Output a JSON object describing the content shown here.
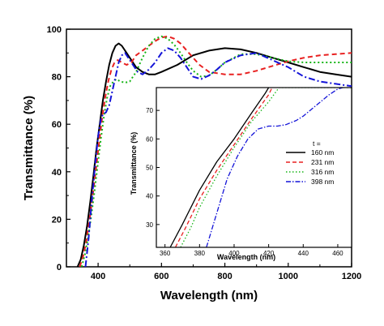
{
  "chart_data": [
    {
      "type": "line",
      "xlabel": "Wavelength (nm)",
      "ylabel": "Transmittance (%)",
      "xlim": [
        300,
        1200
      ],
      "ylim": [
        0,
        100
      ],
      "xticks": [
        400,
        600,
        800,
        1000,
        1200
      ],
      "yticks": [
        0,
        20,
        40,
        60,
        80,
        100
      ],
      "series": [
        {
          "name": "160 nm",
          "color": "#000000",
          "dash": "solid",
          "x": [
            335,
            345,
            355,
            365,
            375,
            385,
            395,
            405,
            415,
            425,
            435,
            445,
            455,
            465,
            475,
            485,
            500,
            520,
            540,
            560,
            580,
            600,
            650,
            700,
            750,
            800,
            850,
            900,
            950,
            1000,
            1050,
            1100,
            1150,
            1200
          ],
          "y": [
            0,
            3,
            9,
            17,
            27,
            38,
            50,
            60,
            70,
            78,
            85,
            90,
            93,
            94,
            93,
            91,
            88,
            84,
            82,
            81,
            81,
            82,
            85,
            89,
            91,
            92,
            91.5,
            90,
            88,
            86,
            84,
            82,
            81,
            80
          ]
        },
        {
          "name": "231 nm",
          "color": "#e82020",
          "dash": "6,4",
          "x": [
            342,
            352,
            362,
            372,
            382,
            392,
            402,
            412,
            422,
            432,
            442,
            452,
            462,
            475,
            490,
            505,
            520,
            540,
            560,
            580,
            600,
            620,
            640,
            660,
            680,
            700,
            720,
            750,
            800,
            850,
            900,
            950,
            1000,
            1050,
            1100,
            1150,
            1200
          ],
          "y": [
            0,
            4,
            10,
            19,
            29,
            40,
            51,
            62,
            71,
            78,
            83,
            86,
            87,
            86,
            85,
            86,
            89,
            91,
            93,
            95,
            96.5,
            97,
            96,
            94,
            91,
            88,
            85,
            82,
            81,
            81,
            82.5,
            84.5,
            86.5,
            88,
            89,
            89.5,
            90
          ]
        },
        {
          "name": "316 nm",
          "color": "#16b516",
          "dash": "2,3",
          "x": [
            348,
            358,
            368,
            378,
            388,
            398,
            408,
            418,
            428,
            438,
            448,
            458,
            470,
            485,
            500,
            520,
            540,
            560,
            580,
            600,
            620,
            640,
            660,
            680,
            700,
            725,
            750,
            775,
            800,
            850,
            900,
            950,
            1000,
            1050,
            1100,
            1150,
            1200
          ],
          "y": [
            0,
            5,
            12,
            21,
            31,
            42,
            53,
            63,
            71,
            76,
            78,
            79,
            78,
            77.5,
            78,
            82,
            88,
            93,
            96,
            97,
            96,
            93.5,
            90,
            86,
            82.5,
            80,
            80.5,
            83,
            86,
            89.5,
            89.5,
            88,
            86.5,
            86,
            86,
            86,
            86
          ]
        },
        {
          "name": "398 nm",
          "color": "#1414d8",
          "dash": "8,3,2,3",
          "x": [
            360,
            370,
            380,
            390,
            400,
            410,
            418,
            425,
            435,
            445,
            455,
            465,
            475,
            485,
            495,
            510,
            525,
            540,
            560,
            580,
            600,
            620,
            640,
            660,
            680,
            700,
            725,
            750,
            775,
            800,
            850,
            900,
            950,
            1000,
            1050,
            1100,
            1150,
            1200
          ],
          "y": [
            0,
            12,
            28,
            42,
            55,
            63,
            64.5,
            65,
            68,
            74,
            80,
            86,
            89,
            90,
            88,
            85,
            82,
            81,
            83,
            86,
            90,
            92,
            91,
            88,
            84,
            80,
            79,
            80.5,
            83,
            86,
            89,
            90,
            87,
            84,
            80,
            78,
            77,
            76
          ]
        }
      ]
    },
    {
      "type": "line",
      "xlabel": "Wavelength (nm)",
      "ylabel": "Transmittance (%)",
      "xlim": [
        355,
        468
      ],
      "ylim": [
        22,
        78
      ],
      "xticks": [
        360,
        380,
        400,
        420,
        440,
        460
      ],
      "yticks": [
        30,
        40,
        50,
        60,
        70
      ],
      "legend": {
        "position": "right",
        "title": "t =",
        "entries": [
          "160 nm",
          "231 nm",
          "316 nm",
          "398 nm"
        ]
      },
      "series": [
        {
          "name": "160 nm",
          "color": "#000000",
          "dash": "solid",
          "x": [
            363,
            370,
            380,
            390,
            400,
            410,
            418,
            420
          ],
          "y": [
            22,
            30,
            42,
            52,
            60,
            69,
            76,
            78
          ]
        },
        {
          "name": "231 nm",
          "color": "#e82020",
          "dash": "5,3",
          "x": [
            366,
            372,
            380,
            390,
            400,
            410,
            420,
            422
          ],
          "y": [
            22,
            29,
            39,
            49,
            58,
            67,
            75.5,
            78
          ]
        },
        {
          "name": "316 nm",
          "color": "#16b516",
          "dash": "1.5,2.5",
          "x": [
            369,
            375,
            380,
            390,
            400,
            410,
            420,
            426,
            440,
            450,
            468
          ],
          "y": [
            22,
            29,
            36,
            47,
            57,
            66,
            73,
            78,
            78,
            78,
            78
          ]
        },
        {
          "name": "398 nm",
          "color": "#1414d8",
          "dash": "6,2,1.5,2",
          "x": [
            384,
            390,
            396,
            402,
            408,
            414,
            420,
            425,
            430,
            436,
            440,
            445,
            450,
            455,
            460,
            463
          ],
          "y": [
            22,
            34,
            46,
            54,
            60,
            63.5,
            64.5,
            64.5,
            65,
            66.5,
            68,
            70.5,
            73,
            75.5,
            77.5,
            78
          ]
        }
      ]
    }
  ]
}
